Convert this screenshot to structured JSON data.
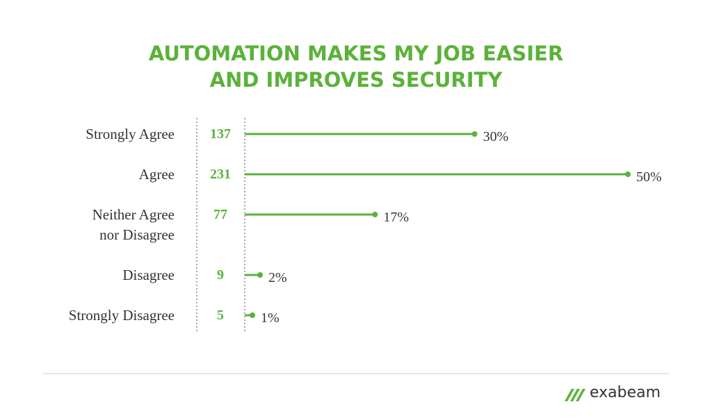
{
  "chart_data": {
    "type": "lollipop",
    "title": "AUTOMATION MAKES MY JOB EASIER\nAND IMPROVES SECURITY",
    "categories": [
      "Strongly Agree",
      "Agree",
      "Neither Agree\nnor Disagree",
      "Disagree",
      "Strongly Disagree"
    ],
    "counts": [
      137,
      231,
      77,
      9,
      5
    ],
    "values": [
      30,
      50,
      17,
      2,
      1
    ],
    "value_labels": [
      "30%",
      "50%",
      "17%",
      "2%",
      "1%"
    ],
    "color": "#5bb23a"
  },
  "brand": "exabeam"
}
